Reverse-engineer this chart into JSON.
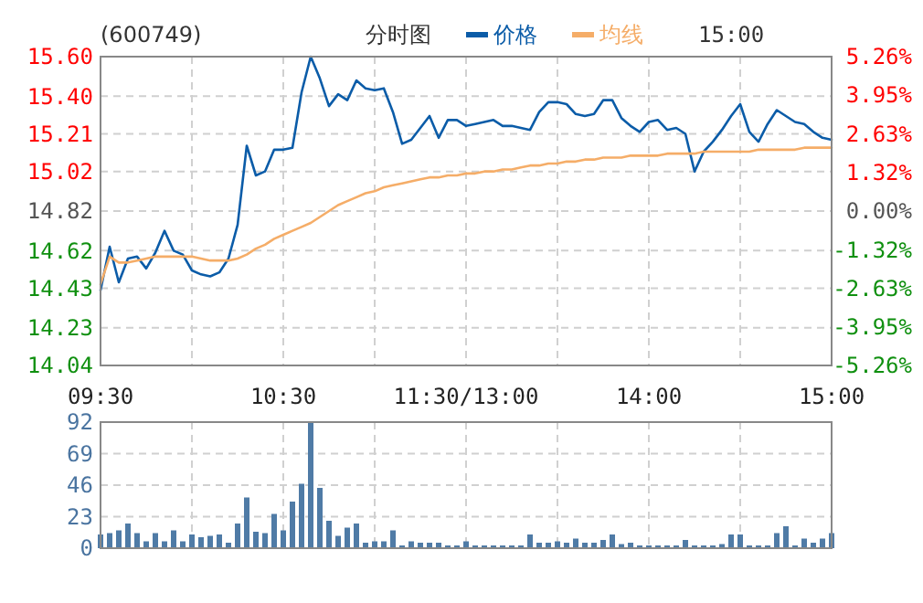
{
  "chart_data": [
    {
      "type": "line",
      "title": "(600749)",
      "subtitle": "分时图",
      "annotations": [
        "15:00"
      ],
      "legend": "top",
      "grid": true,
      "line_style": "solid",
      "marker": "none",
      "categories": [
        "09:30",
        null,
        null,
        null,
        null,
        null,
        null,
        null,
        null,
        null,
        null,
        null,
        null,
        null,
        null,
        null,
        null,
        null,
        null,
        null,
        "10:30",
        null,
        null,
        null,
        null,
        null,
        null,
        null,
        null,
        null,
        null,
        null,
        null,
        null,
        null,
        null,
        null,
        null,
        null,
        null,
        "11:30/13:00",
        null,
        null,
        null,
        null,
        null,
        null,
        null,
        null,
        null,
        null,
        null,
        null,
        null,
        null,
        null,
        null,
        null,
        null,
        null,
        "14:00",
        null,
        null,
        null,
        null,
        null,
        null,
        null,
        null,
        null,
        null,
        null,
        null,
        null,
        null,
        null,
        null,
        null,
        null,
        null,
        "15:00"
      ],
      "ylim": [
        14.04,
        15.6
      ],
      "yticks": [
        {
          "value": 14.04,
          "label": "14.04"
        },
        {
          "value": 14.23,
          "label": "14.23"
        },
        {
          "value": 14.43,
          "label": "14.43"
        },
        {
          "value": 14.62,
          "label": "14.62"
        },
        {
          "value": 14.82,
          "label": "14.82"
        },
        {
          "value": 15.02,
          "label": "15.02"
        },
        {
          "value": 15.21,
          "label": "15.21"
        },
        {
          "value": 15.4,
          "label": "15.40"
        },
        {
          "value": 15.6,
          "label": "15.60"
        }
      ],
      "y2lim": [
        -5.26,
        5.26
      ],
      "y2ticks": [
        {
          "value": -5.26,
          "label": "-5.26%"
        },
        {
          "value": -3.95,
          "label": "-3.95%"
        },
        {
          "value": -2.63,
          "label": "-2.63%"
        },
        {
          "value": -1.32,
          "label": "-1.32%"
        },
        {
          "value": 0,
          "label": "0.00%"
        },
        {
          "value": 1.32,
          "label": "1.32%"
        },
        {
          "value": 2.63,
          "label": "2.63%"
        },
        {
          "value": 3.95,
          "label": "3.95%"
        },
        {
          "value": 5.26,
          "label": "5.26%"
        }
      ],
      "series": [
        {
          "name": "价格",
          "color": "#0b5ca8",
          "values": [
            14.42,
            14.64,
            14.46,
            14.58,
            14.59,
            14.53,
            14.61,
            14.72,
            14.62,
            14.6,
            14.52,
            14.5,
            14.49,
            14.51,
            14.58,
            14.75,
            15.15,
            15.0,
            15.02,
            15.13,
            15.13,
            15.14,
            15.42,
            15.6,
            15.49,
            15.35,
            15.41,
            15.38,
            15.48,
            15.44,
            15.43,
            15.44,
            15.32,
            15.16,
            15.18,
            15.24,
            15.3,
            15.19,
            15.28,
            15.28,
            15.25,
            15.26,
            15.27,
            15.28,
            15.25,
            15.25,
            15.24,
            15.23,
            15.32,
            15.37,
            15.37,
            15.36,
            15.31,
            15.3,
            15.31,
            15.38,
            15.38,
            15.29,
            15.25,
            15.22,
            15.27,
            15.28,
            15.23,
            15.24,
            15.21,
            15.02,
            15.12,
            15.17,
            15.23,
            15.3,
            15.36,
            15.22,
            15.17,
            15.26,
            15.33,
            15.3,
            15.27,
            15.26,
            15.22,
            15.19,
            15.18
          ]
        },
        {
          "name": "均线",
          "color": "#f5ad68",
          "values": [
            14.45,
            14.59,
            14.56,
            14.56,
            14.57,
            14.58,
            14.59,
            14.59,
            14.59,
            14.59,
            14.59,
            14.58,
            14.57,
            14.57,
            14.57,
            14.58,
            14.6,
            14.63,
            14.65,
            14.68,
            14.7,
            14.72,
            14.74,
            14.76,
            14.79,
            14.82,
            14.85,
            14.87,
            14.89,
            14.91,
            14.92,
            14.94,
            14.95,
            14.96,
            14.97,
            14.98,
            14.99,
            14.99,
            15.0,
            15.0,
            15.01,
            15.01,
            15.02,
            15.02,
            15.03,
            15.03,
            15.04,
            15.05,
            15.05,
            15.06,
            15.06,
            15.07,
            15.07,
            15.08,
            15.08,
            15.09,
            15.09,
            15.09,
            15.1,
            15.1,
            15.1,
            15.1,
            15.11,
            15.11,
            15.11,
            15.11,
            15.12,
            15.12,
            15.12,
            15.12,
            15.12,
            15.12,
            15.13,
            15.13,
            15.13,
            15.13,
            15.13,
            15.14,
            15.14,
            15.14,
            15.14
          ]
        }
      ]
    },
    {
      "type": "bar",
      "grid": true,
      "tick_labels": "y",
      "categories": [
        null,
        null,
        null,
        null,
        null,
        null,
        null,
        null,
        null,
        null,
        null,
        null,
        null,
        null,
        null,
        null,
        null,
        null,
        null,
        null,
        null,
        null,
        null,
        null,
        null,
        null,
        null,
        null,
        null,
        null,
        null,
        null,
        null,
        null,
        null,
        null,
        null,
        null,
        null,
        null,
        null,
        null,
        null,
        null,
        null,
        null,
        null,
        null,
        null,
        null,
        null,
        null,
        null,
        null,
        null,
        null,
        null,
        null,
        null,
        null,
        null,
        null,
        null,
        null,
        null,
        null,
        null,
        null,
        null,
        null,
        null,
        null,
        null,
        null,
        null,
        null,
        null,
        null,
        null,
        null,
        null
      ],
      "ylim": [
        0,
        92
      ],
      "yticks": [
        0,
        23,
        46,
        69,
        92
      ],
      "series": [
        {
          "color": "#4f7ba6",
          "values": [
            10,
            11,
            13,
            18,
            11,
            5,
            11,
            5,
            13,
            5,
            10,
            8,
            9,
            10,
            4,
            18,
            37,
            12,
            11,
            25,
            13,
            34,
            47,
            92,
            44,
            20,
            9,
            15,
            18,
            4,
            5,
            5,
            13,
            2,
            5,
            4,
            4,
            4,
            2,
            2,
            5,
            2,
            2,
            2,
            2,
            2,
            2,
            10,
            4,
            4,
            5,
            4,
            7,
            4,
            4,
            6,
            10,
            3,
            4,
            2,
            2,
            2,
            2,
            2,
            6,
            2,
            2,
            2,
            3,
            10,
            10,
            2,
            2,
            2,
            11,
            16,
            2,
            7,
            4,
            7,
            11
          ]
        }
      ]
    }
  ]
}
